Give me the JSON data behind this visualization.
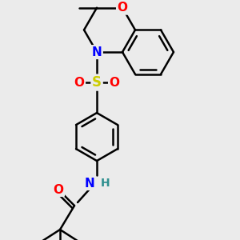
{
  "bg_color": "#ebebeb",
  "bond_color": "#000000",
  "bond_width": 1.8,
  "atom_colors": {
    "O": "#ff0000",
    "N": "#0000ff",
    "S": "#cccc00",
    "C": "#000000",
    "H": "#2f8f8f"
  },
  "font_size": 10,
  "figsize": [
    3.0,
    3.0
  ],
  "dpi": 100
}
